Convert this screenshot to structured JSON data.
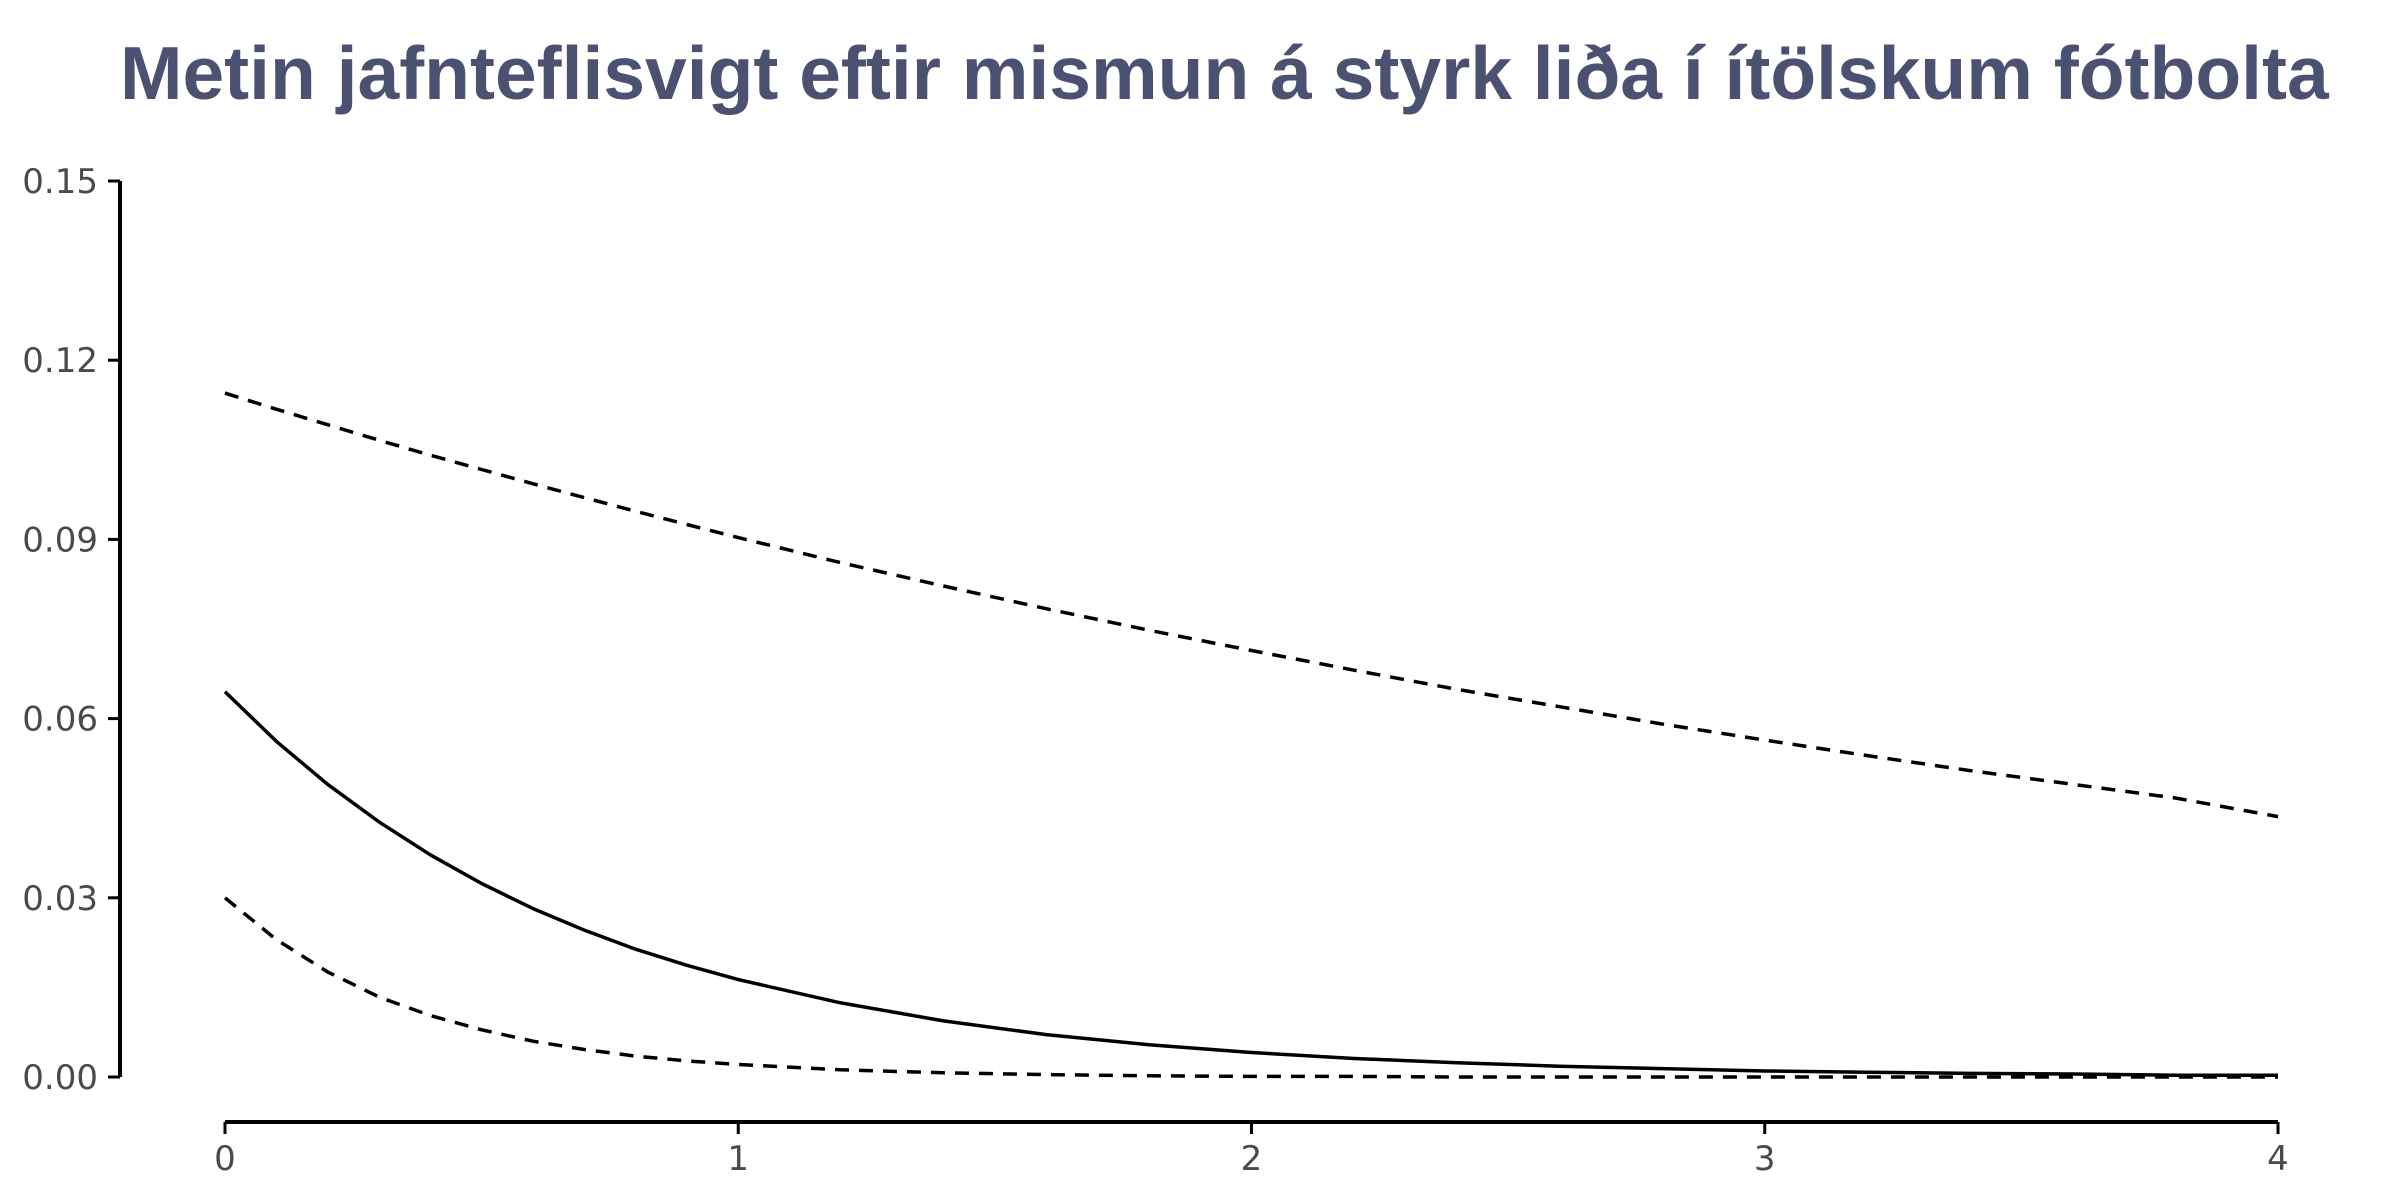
{
  "chart_data": {
    "type": "line",
    "title": "Metin jafnteflisvigt eftir mismun á styrk liða í ítölskum fótbolta",
    "xlabel": "",
    "ylabel": "",
    "xlim": [
      0,
      4
    ],
    "ylim": [
      0,
      0.15
    ],
    "xticks": [
      0,
      1,
      2,
      3,
      4
    ],
    "yticks": [
      "0.00",
      "0.03",
      "0.06",
      "0.09",
      "0.12",
      "0.15"
    ],
    "grid": false,
    "legend": "none",
    "x": [
      0,
      0.1,
      0.2,
      0.3,
      0.4,
      0.5,
      0.6,
      0.7,
      0.8,
      0.9,
      1.0,
      1.2,
      1.4,
      1.6,
      1.8,
      2.0,
      2.2,
      2.4,
      2.6,
      2.8,
      3.0,
      3.2,
      3.4,
      3.6,
      3.8,
      4.0
    ],
    "series": [
      {
        "style": "solid",
        "values": [
          0.0645,
          0.0562,
          0.049,
          0.0427,
          0.0372,
          0.0324,
          0.0282,
          0.0246,
          0.0214,
          0.0187,
          0.0163,
          0.0124,
          0.0094,
          0.0071,
          0.0054,
          0.0041,
          0.0031,
          0.0024,
          0.0018,
          0.0014,
          0.001,
          0.0008,
          0.0006,
          0.0005,
          0.0003,
          0.0003
        ]
      },
      {
        "style": "dashed",
        "values": [
          0.1145,
          0.1118,
          0.1092,
          0.1066,
          0.1041,
          0.1017,
          0.0993,
          0.097,
          0.0947,
          0.0925,
          0.0903,
          0.0861,
          0.0822,
          0.0784,
          0.0748,
          0.0714,
          0.0681,
          0.0649,
          0.062,
          0.0591,
          0.0564,
          0.0538,
          0.0513,
          0.049,
          0.0467,
          0.0436
        ]
      },
      {
        "style": "dashed",
        "values": [
          0.03,
          0.023,
          0.0176,
          0.0134,
          0.0103,
          0.0079,
          0.006,
          0.0046,
          0.0035,
          0.0027,
          0.0021,
          0.0012,
          0.0007,
          0.0004,
          0.0002,
          0.0001,
          0.0001,
          0.0,
          0.0,
          0.0,
          0.0,
          0.0,
          0.0,
          0.0,
          0.0,
          0.0
        ]
      }
    ]
  },
  "colors": {
    "title": "#4b5170",
    "lines": "#000000",
    "ticks": "#4a4a4a"
  }
}
